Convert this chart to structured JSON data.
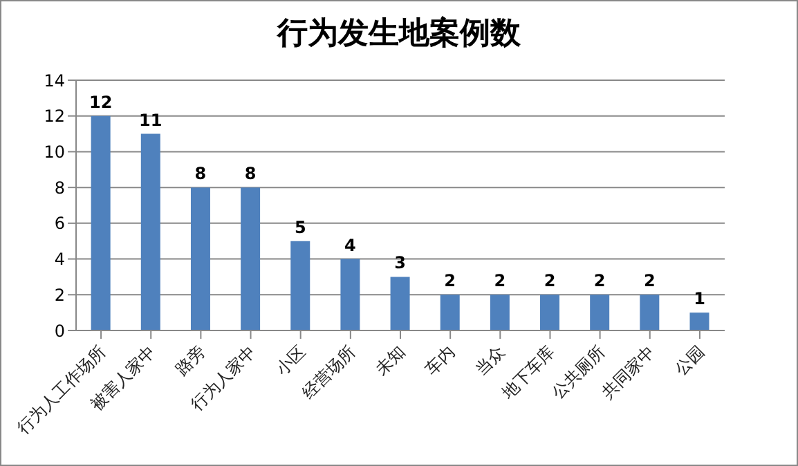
{
  "chart_data": {
    "type": "bar",
    "title": "行为发生地案例数",
    "categories": [
      "行为人工作场所",
      "被害人家中",
      "路旁",
      "行为人家中",
      "小区",
      "经营场所",
      "未知",
      "车内",
      "当众",
      "地下车库",
      "公共厕所",
      "共同家中",
      "公园"
    ],
    "values": [
      12,
      11,
      8,
      8,
      5,
      4,
      3,
      2,
      2,
      2,
      2,
      2,
      1
    ],
    "color": "#4f81bd",
    "ylim": [
      0,
      14
    ],
    "yticks": [
      0,
      2,
      4,
      6,
      8,
      10,
      12,
      14
    ],
    "grid": "y",
    "data_labels": true
  }
}
